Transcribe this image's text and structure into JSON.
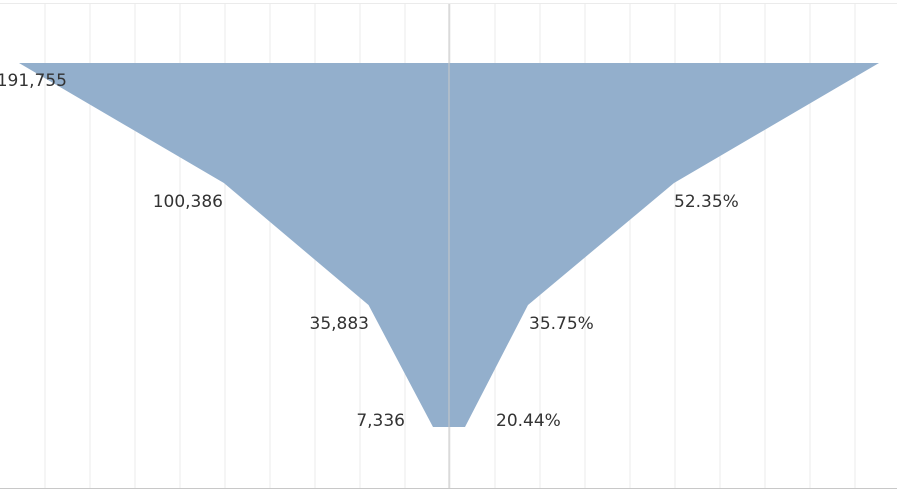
{
  "chart_data": {
    "type": "area",
    "stages": [
      {
        "count": 191755,
        "count_label": "191,755",
        "pct": 100,
        "pct_label": ""
      },
      {
        "count": 100386,
        "count_label": "100,386",
        "pct": 52.35,
        "pct_label": "52.35%"
      },
      {
        "count": 35883,
        "count_label": "35,883",
        "pct": 35.75,
        "pct_label": "35.75%"
      },
      {
        "count": 7336,
        "count_label": "7,336",
        "pct": 20.44,
        "pct_label": "20.44%"
      }
    ],
    "grid": true,
    "colors": {
      "fill": "#93AFCC",
      "grid": "#ebebeb",
      "axis": "#c8c8c8",
      "text": "#333333"
    }
  }
}
